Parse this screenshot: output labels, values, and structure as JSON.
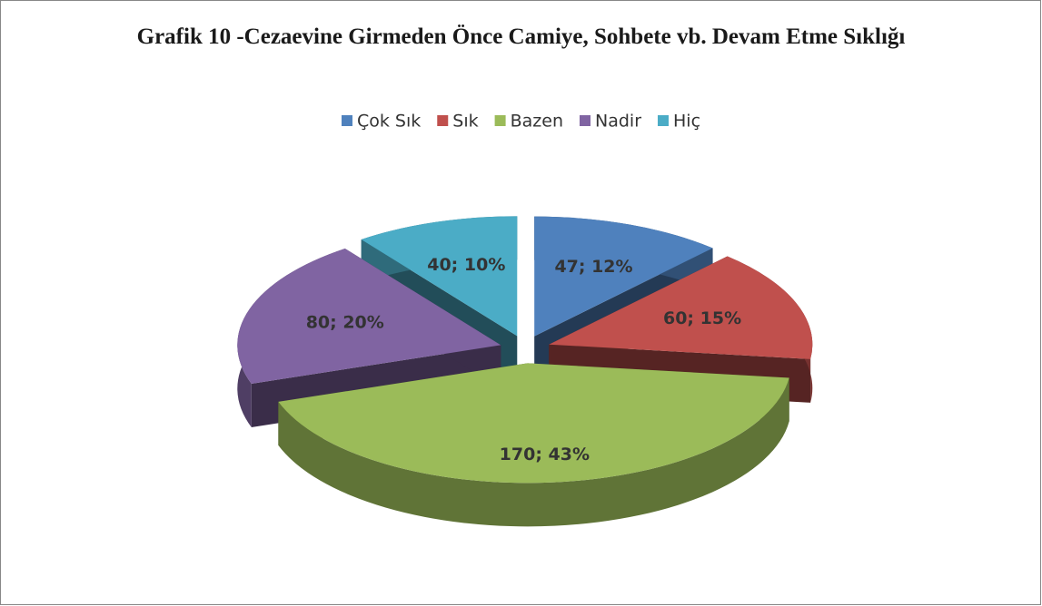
{
  "chart_data": {
    "type": "pie3d",
    "title": "Grafik 10 -Cezaevine Girmeden Önce Camiye, Sohbete vb. Devam Etme Sıklığı",
    "categories": [
      "Çok Sık",
      "Sık",
      "Bazen",
      "Nadir",
      "Hiç"
    ],
    "values": [
      47,
      60,
      170,
      80,
      40
    ],
    "value_labels": [
      "47; 12%",
      "60; 15%",
      "170; 43%",
      "80; 20%",
      "40; 10%"
    ],
    "colors": [
      "#4f81bd",
      "#c0504d",
      "#9bbb59",
      "#8064a2",
      "#4bacc6"
    ],
    "legend": "top"
  }
}
